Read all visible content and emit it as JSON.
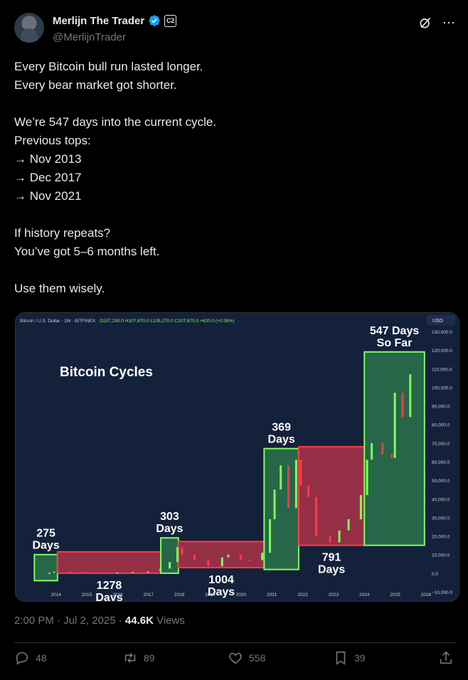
{
  "author": {
    "name": "Merlijn The Trader",
    "handle": "@MerlijnTrader",
    "affiliate_badge": "C2"
  },
  "tweet": {
    "text": "Every Bitcoin bull run lasted longer.\nEvery bear market got shorter.\n\nWe’re 547 days into the current cycle.\nPrevious tops:\n→ Nov 2013\n→ Dec 2017\n→ Nov 2021\n\nIf history repeats?\nYou’ve got 5–6 months left.\n\nUse them wisely."
  },
  "meta": {
    "timestamp": "2:00 PM · Jul 2, 2025 · ",
    "views_count": "44.6K",
    "views_label": " Views"
  },
  "actions": {
    "replies": "48",
    "reposts": "89",
    "likes": "558",
    "bookmarks": "39"
  },
  "colors": {
    "verified": "#1d9bf0",
    "chart_bg": "#14213a",
    "bull_box": "#2e7d4f",
    "bear_box": "#c0344a",
    "candle_up": "#7dff5a",
    "candle_down": "#ff3b4a"
  },
  "chart": {
    "ticker": "Bitcoin / U.S. Dollar · 1M · BITFINEX",
    "ohlc": "O107,250.0  H107,870.0  L105,270.0  C107,870.0  +620.0 (+0.58%)",
    "title": "Bitcoin Cycles",
    "currency": "USD"
  },
  "chart_data": {
    "type": "line",
    "title": "Bitcoin Cycles",
    "x_ticks": [
      "2014",
      "2015",
      "2016",
      "2017",
      "2018",
      "2019",
      "2020",
      "2021",
      "2022",
      "2023",
      "2024",
      "2025",
      "2026"
    ],
    "y_ticks": [
      "130,000.0",
      "120,000.0",
      "110,000.0",
      "100,000.0",
      "90,000.0",
      "80,000.0",
      "70,000.0",
      "60,000.0",
      "50,000.0",
      "40,000.0",
      "30,000.0",
      "20,000.0",
      "10,000.0",
      "0.0",
      "−10,000.0"
    ],
    "ylim": [
      -10000,
      130000
    ],
    "xlim": [
      2013.2,
      2026.3
    ],
    "periods": [
      {
        "kind": "bull",
        "label": "275 Days",
        "x0": 2013.3,
        "x1": 2014.05,
        "y0": -4000,
        "y1": 10000
      },
      {
        "kind": "bear",
        "label": "1278 Days",
        "x0": 2014.05,
        "x1": 2017.4,
        "y0": 0,
        "y1": 11500
      },
      {
        "kind": "bull",
        "label": "303 Days",
        "x0": 2017.4,
        "x1": 2017.97,
        "y0": 0,
        "y1": 19000
      },
      {
        "kind": "bear",
        "label": "1004 Days",
        "x0": 2017.97,
        "x1": 2020.75,
        "y0": 3000,
        "y1": 17000
      },
      {
        "kind": "bull",
        "label": "369 Days",
        "x0": 2020.75,
        "x1": 2021.87,
        "y0": 2000,
        "y1": 67000
      },
      {
        "kind": "bear",
        "label": "791 Days",
        "x0": 2021.87,
        "x1": 2024.0,
        "y0": 15000,
        "y1": 68000
      },
      {
        "kind": "bull",
        "label": "547 Days So Far",
        "x0": 2024.0,
        "x1": 2025.95,
        "y0": 15000,
        "y1": 119000
      }
    ],
    "series": [
      {
        "x": [
          2013.3,
          2013.8,
          2013.95,
          2014.5,
          2015.0,
          2015.5,
          2016.0,
          2016.5,
          2017.0,
          2017.4,
          2017.7,
          2017.95,
          2018.1,
          2018.5,
          2018.95,
          2019.4,
          2019.6,
          2020.0,
          2020.3,
          2020.7,
          2020.95,
          2021.1,
          2021.3,
          2021.55,
          2021.8,
          2021.95,
          2022.2,
          2022.45,
          2022.9,
          2023.2,
          2023.5,
          2023.9,
          2024.1,
          2024.25,
          2024.6,
          2024.9,
          2025.0,
          2025.25,
          2025.5
        ],
        "y": [
          100,
          200,
          800,
          600,
          300,
          250,
          400,
          650,
          1000,
          2500,
          6000,
          14000,
          10000,
          7000,
          3700,
          8500,
          10000,
          7200,
          7000,
          11000,
          29000,
          45000,
          58000,
          35000,
          61000,
          47000,
          41000,
          20000,
          16500,
          23000,
          29000,
          42000,
          61000,
          70000,
          64000,
          62000,
          97000,
          84000,
          107000
        ]
      }
    ]
  }
}
